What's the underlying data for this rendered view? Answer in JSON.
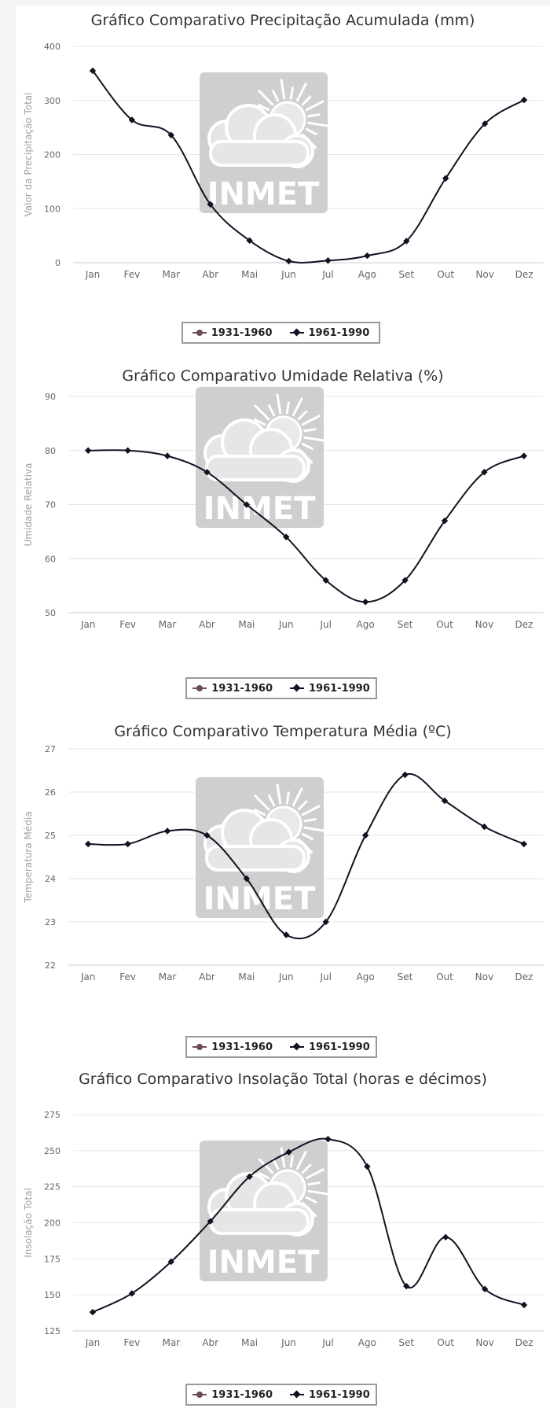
{
  "colors": {
    "series_1931": "#6b4d52",
    "series_1961": "#111122",
    "watermark": "#cfcfcf",
    "grid": "#e6e6e6",
    "tick_text": "#666666",
    "axis_title": "#a0a0a0"
  },
  "watermark": {
    "text": "INMET",
    "icon": "cloud-sun-icon"
  },
  "months": [
    "Jan",
    "Fev",
    "Mar",
    "Abr",
    "Mai",
    "Jun",
    "Jul",
    "Ago",
    "Set",
    "Out",
    "Nov",
    "Dez"
  ],
  "chart_data": [
    {
      "type": "line",
      "title": "Gráfico Comparativo Precipitação Acumulada (mm)",
      "xlabel": "",
      "ylabel": "Valor da Precipitação Total",
      "categories": [
        "Jan",
        "Fev",
        "Mar",
        "Abr",
        "Mai",
        "Jun",
        "Jul",
        "Ago",
        "Set",
        "Out",
        "Nov",
        "Dez"
      ],
      "ylim": [
        0,
        400
      ],
      "yticks": [
        "400",
        "300",
        "200",
        "100",
        "0"
      ],
      "grid": true,
      "legend": "bottom-center",
      "legend_labels": [
        "1931-1960",
        "1961-1990"
      ],
      "series": [
        {
          "name": "1961-1990",
          "values": [
            355,
            264,
            236,
            108,
            41,
            3,
            4,
            13,
            40,
            156,
            257,
            301
          ]
        }
      ]
    },
    {
      "type": "line",
      "title": "Gráfico Comparativo Umidade Relativa (%)",
      "xlabel": "",
      "ylabel": "Umidade Relativa",
      "categories": [
        "Jan",
        "Fev",
        "Mar",
        "Abr",
        "Mai",
        "Jun",
        "Jul",
        "Ago",
        "Set",
        "Out",
        "Nov",
        "Dez"
      ],
      "ylim": [
        50,
        90
      ],
      "yticks": [
        "90",
        "80",
        "70",
        "60",
        "50"
      ],
      "grid": true,
      "legend": "bottom-center",
      "legend_labels": [
        "1931-1960",
        "1961-1990"
      ],
      "series": [
        {
          "name": "1961-1990",
          "values": [
            80,
            80,
            79,
            76,
            70,
            64,
            56,
            52,
            56,
            67,
            76,
            79
          ]
        }
      ]
    },
    {
      "type": "line",
      "title": "Gráfico Comparativo Temperatura Média (ºC)",
      "xlabel": "",
      "ylabel": "Temperatura Média",
      "categories": [
        "Jan",
        "Fev",
        "Mar",
        "Abr",
        "Mai",
        "Jun",
        "Jul",
        "Ago",
        "Set",
        "Out",
        "Nov",
        "Dez"
      ],
      "ylim": [
        22,
        27
      ],
      "yticks": [
        "27",
        "26",
        "25",
        "24",
        "23",
        "22"
      ],
      "grid": true,
      "legend": "bottom-center",
      "legend_labels": [
        "1931-1960",
        "1961-1990"
      ],
      "series": [
        {
          "name": "1961-1990",
          "values": [
            24.8,
            24.8,
            25.1,
            25.0,
            24.0,
            22.7,
            23.0,
            25.0,
            26.4,
            25.8,
            25.2,
            24.8
          ]
        }
      ]
    },
    {
      "type": "line",
      "title": "Gráfico Comparativo Insolação Total (horas e décimos)",
      "xlabel": "",
      "ylabel": "Insolação Total",
      "categories": [
        "Jan",
        "Fev",
        "Mar",
        "Abr",
        "Mai",
        "Jun",
        "Jul",
        "Ago",
        "Set",
        "Out",
        "Nov",
        "Dez"
      ],
      "ylim": [
        125,
        275
      ],
      "yticks": [
        "275",
        "250",
        "225",
        "200",
        "175",
        "150",
        "125"
      ],
      "grid": true,
      "legend": "bottom-center",
      "legend_labels": [
        "1931-1960",
        "1961-1990"
      ],
      "series": [
        {
          "name": "1961-1990",
          "values": [
            138,
            151,
            173,
            201,
            232,
            249,
            258,
            239,
            156,
            190,
            154,
            143
          ]
        }
      ]
    }
  ]
}
